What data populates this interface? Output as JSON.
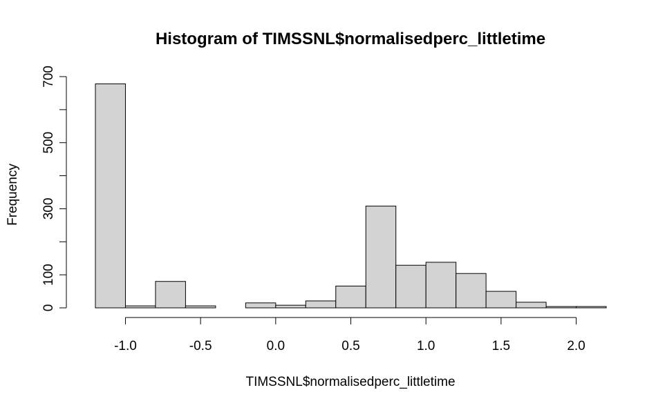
{
  "chart_data": {
    "type": "bar",
    "title": "Histogram of TIMSSNL$normalisedperc_littletime",
    "xlabel": "TIMSSNL$normalisedperc_littletime",
    "ylabel": "Frequency",
    "bins": [
      {
        "from": -1.2,
        "to": -1.0,
        "count": 678
      },
      {
        "from": -1.0,
        "to": -0.8,
        "count": 6
      },
      {
        "from": -0.8,
        "to": -0.6,
        "count": 80
      },
      {
        "from": -0.6,
        "to": -0.4,
        "count": 6
      },
      {
        "from": -0.4,
        "to": -0.2,
        "count": 0
      },
      {
        "from": -0.2,
        "to": 0.0,
        "count": 15
      },
      {
        "from": 0.0,
        "to": 0.2,
        "count": 8
      },
      {
        "from": 0.2,
        "to": 0.4,
        "count": 21
      },
      {
        "from": 0.4,
        "to": 0.6,
        "count": 66
      },
      {
        "from": 0.6,
        "to": 0.8,
        "count": 308
      },
      {
        "from": 0.8,
        "to": 1.0,
        "count": 129
      },
      {
        "from": 1.0,
        "to": 1.2,
        "count": 138
      },
      {
        "from": 1.2,
        "to": 1.4,
        "count": 104
      },
      {
        "from": 1.4,
        "to": 1.6,
        "count": 50
      },
      {
        "from": 1.6,
        "to": 1.8,
        "count": 17
      },
      {
        "from": 1.8,
        "to": 2.0,
        "count": 4
      },
      {
        "from": 2.0,
        "to": 2.2,
        "count": 4
      }
    ],
    "xlim": [
      -1.2,
      2.2
    ],
    "ylim": [
      0,
      700
    ],
    "x_ticks": [
      {
        "value": -1.0,
        "label": "-1.0"
      },
      {
        "value": -0.5,
        "label": "-0.5"
      },
      {
        "value": 0.0,
        "label": "0.0"
      },
      {
        "value": 0.5,
        "label": "0.5"
      },
      {
        "value": 1.0,
        "label": "1.0"
      },
      {
        "value": 1.5,
        "label": "1.5"
      },
      {
        "value": 2.0,
        "label": "2.0"
      }
    ],
    "y_ticks": [
      0,
      100,
      200,
      300,
      400,
      500,
      600,
      700
    ],
    "y_tick_labels": [
      {
        "value": 0,
        "label": "0"
      },
      {
        "value": 100,
        "label": "100"
      },
      {
        "value": 300,
        "label": "300"
      },
      {
        "value": 500,
        "label": "500"
      },
      {
        "value": 700,
        "label": "700"
      }
    ],
    "bar_fill": "#d3d3d3",
    "bar_stroke": "#000000",
    "grid": false
  }
}
